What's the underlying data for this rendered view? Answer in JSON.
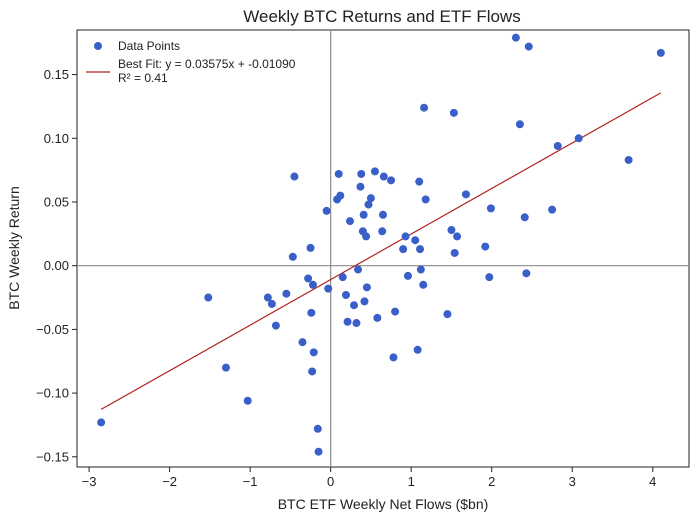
{
  "chart_data": {
    "type": "scatter",
    "title": "Weekly BTC Returns and ETF Flows",
    "xlabel": "BTC ETF Weekly Net Flows ($bn)",
    "ylabel": "BTC Weekly Return",
    "xlim": [
      -3.15,
      4.45
    ],
    "ylim": [
      -0.158,
      0.185
    ],
    "xticks": [
      -3,
      -2,
      -1,
      0,
      1,
      2,
      3,
      4
    ],
    "xtick_labels": [
      "−3",
      "−2",
      "−1",
      "0",
      "1",
      "2",
      "3",
      "4"
    ],
    "yticks": [
      -0.15,
      -0.1,
      -0.05,
      0.0,
      0.05,
      0.1,
      0.15
    ],
    "ytick_labels": [
      "−0.15",
      "−0.10",
      "−0.05",
      "0.00",
      "0.05",
      "0.10",
      "0.15"
    ],
    "grid": false,
    "reference_lines": {
      "x": 0,
      "y": 0
    },
    "legend_position": "top-left",
    "series": [
      {
        "name": "Data Points",
        "type": "scatter",
        "color": "#3a5fc8",
        "x": [
          -2.85,
          -1.52,
          -1.3,
          -1.03,
          -0.78,
          -0.73,
          -0.68,
          -0.55,
          -0.47,
          -0.45,
          -0.35,
          -0.28,
          -0.25,
          -0.24,
          -0.23,
          -0.22,
          -0.21,
          -0.16,
          -0.15,
          -0.05,
          -0.03,
          0.08,
          0.1,
          0.12,
          0.15,
          0.19,
          0.21,
          0.24,
          0.29,
          0.32,
          0.34,
          0.37,
          0.38,
          0.4,
          0.41,
          0.42,
          0.44,
          0.45,
          0.47,
          0.5,
          0.55,
          0.58,
          0.64,
          0.65,
          0.66,
          0.75,
          0.78,
          0.8,
          0.9,
          0.93,
          0.96,
          1.05,
          1.08,
          1.1,
          1.11,
          1.12,
          1.15,
          1.16,
          1.18,
          1.45,
          1.5,
          1.53,
          1.54,
          1.57,
          1.68,
          1.92,
          1.97,
          1.99,
          2.3,
          2.35,
          2.41,
          2.43,
          2.46,
          2.75,
          2.82,
          3.08,
          3.7,
          4.1
        ],
        "y": [
          -0.123,
          -0.025,
          -0.08,
          -0.106,
          -0.025,
          -0.03,
          -0.047,
          -0.022,
          0.007,
          0.07,
          -0.06,
          -0.01,
          0.014,
          -0.037,
          -0.083,
          -0.015,
          -0.068,
          -0.128,
          -0.146,
          0.043,
          -0.018,
          0.052,
          0.072,
          0.055,
          -0.009,
          -0.023,
          -0.044,
          0.035,
          -0.031,
          -0.045,
          -0.003,
          0.062,
          0.072,
          0.027,
          0.04,
          -0.028,
          0.023,
          -0.017,
          0.048,
          0.053,
          0.074,
          -0.041,
          0.027,
          0.04,
          0.07,
          0.067,
          -0.072,
          -0.036,
          0.013,
          0.023,
          -0.008,
          0.02,
          -0.066,
          0.066,
          0.013,
          -0.003,
          -0.015,
          0.124,
          0.052,
          -0.038,
          0.028,
          0.12,
          0.01,
          0.023,
          0.056,
          0.015,
          -0.009,
          0.045,
          0.179,
          0.111,
          0.038,
          -0.006,
          0.172,
          0.044,
          0.094,
          0.1,
          0.083,
          0.167
        ]
      },
      {
        "name": "Best Fit: y = 0.03575x + -0.01090",
        "type": "line",
        "color": "#b22222",
        "slope": 0.03575,
        "intercept": -0.0109,
        "x_range": [
          -2.85,
          4.1
        ]
      }
    ],
    "legend": {
      "points_label": "Data Points",
      "fit_label": "Best Fit: y = 0.03575x + -0.01090",
      "r2_label": "R² = 0.41"
    }
  }
}
